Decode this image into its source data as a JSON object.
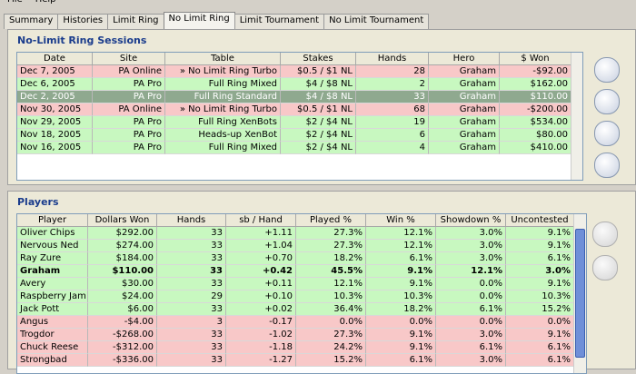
{
  "menu": [
    "File",
    "Help"
  ],
  "tabs": [
    "Summary",
    "Histories",
    "Limit Ring",
    "No Limit Ring",
    "Limit Tournament",
    "No Limit Tournament"
  ],
  "active_tab": 3,
  "sessions": {
    "title": "No-Limit Ring Sessions",
    "columns": [
      "Date",
      "Site",
      "Table",
      "Stakes",
      "Hands",
      "Hero",
      "$ Won"
    ],
    "rows": [
      [
        "Dec 7, 2005",
        "PA Online",
        "» No Limit Ring Turbo",
        "$0.5 / $1 NL",
        "28",
        "Graham",
        "-$92.00"
      ],
      [
        "Dec 6, 2005",
        "PA Pro",
        "Full Ring Mixed",
        "$4 / $8 NL",
        "2",
        "Graham",
        "$162.00"
      ],
      [
        "Dec 2, 2005",
        "PA Pro",
        "Full Ring Standard",
        "$4 / $8 NL",
        "33",
        "Graham",
        "$110.00"
      ],
      [
        "Nov 30, 2005",
        "PA Online",
        "» No Limit Ring Turbo",
        "$0.5 / $1 NL",
        "68",
        "Graham",
        "-$200.00"
      ],
      [
        "Nov 29, 2005",
        "PA Pro",
        "Full Ring XenBots",
        "$2 / $4 NL",
        "19",
        "Graham",
        "$534.00"
      ],
      [
        "Nov 18, 2005",
        "PA Pro",
        "Heads-up XenBot",
        "$2 / $4 NL",
        "6",
        "Graham",
        "$80.00"
      ],
      [
        "Nov 16, 2005",
        "PA Pro",
        "Full Ring Mixed",
        "$2 / $4 NL",
        "4",
        "Graham",
        "$410.00"
      ]
    ],
    "row_colors": [
      "#f8c8c8",
      "#c8f8c0",
      "#8fa98f",
      "#f8c8c8",
      "#c8f8c0",
      "#c8f8c0",
      "#c8f8c0"
    ],
    "selected_row": 2
  },
  "players": {
    "title": "Players",
    "columns": [
      "Player",
      "Dollars Won",
      "Hands",
      "sb / Hand",
      "Played %",
      "Win %",
      "Showdown %",
      "Uncontested"
    ],
    "rows": [
      [
        "Oliver Chips",
        "$292.00",
        "33",
        "+1.11",
        "27.3%",
        "12.1%",
        "3.0%",
        "9.1%"
      ],
      [
        "Nervous Ned",
        "$274.00",
        "33",
        "+1.04",
        "27.3%",
        "12.1%",
        "3.0%",
        "9.1%"
      ],
      [
        "Ray Zure",
        "$184.00",
        "33",
        "+0.70",
        "18.2%",
        "6.1%",
        "3.0%",
        "6.1%"
      ],
      [
        "Graham",
        "$110.00",
        "33",
        "+0.42",
        "45.5%",
        "9.1%",
        "12.1%",
        "3.0%"
      ],
      [
        "Avery",
        "$30.00",
        "33",
        "+0.11",
        "12.1%",
        "9.1%",
        "0.0%",
        "9.1%"
      ],
      [
        "Raspberry Jam",
        "$24.00",
        "29",
        "+0.10",
        "10.3%",
        "10.3%",
        "0.0%",
        "10.3%"
      ],
      [
        "Jack Pott",
        "$6.00",
        "33",
        "+0.02",
        "36.4%",
        "18.2%",
        "6.1%",
        "15.2%"
      ],
      [
        "Angus",
        "-$4.00",
        "3",
        "-0.17",
        "0.0%",
        "0.0%",
        "0.0%",
        "0.0%"
      ],
      [
        "Trogdor",
        "-$268.00",
        "33",
        "-1.02",
        "27.3%",
        "9.1%",
        "3.0%",
        "9.1%"
      ],
      [
        "Chuck Reese",
        "-$312.00",
        "33",
        "-1.18",
        "24.2%",
        "9.1%",
        "6.1%",
        "6.1%"
      ],
      [
        "Strongbad",
        "-$336.00",
        "33",
        "-1.27",
        "15.2%",
        "6.1%",
        "3.0%",
        "6.1%"
      ]
    ],
    "row_colors": [
      "#c8f8c0",
      "#c8f8c0",
      "#c8f8c0",
      "#c8f8c0",
      "#c8f8c0",
      "#c8f8c0",
      "#c8f8c0",
      "#f8c8c8",
      "#f8c8c8",
      "#f8c8c8",
      "#f8c8c8"
    ],
    "bold_row": 3
  }
}
